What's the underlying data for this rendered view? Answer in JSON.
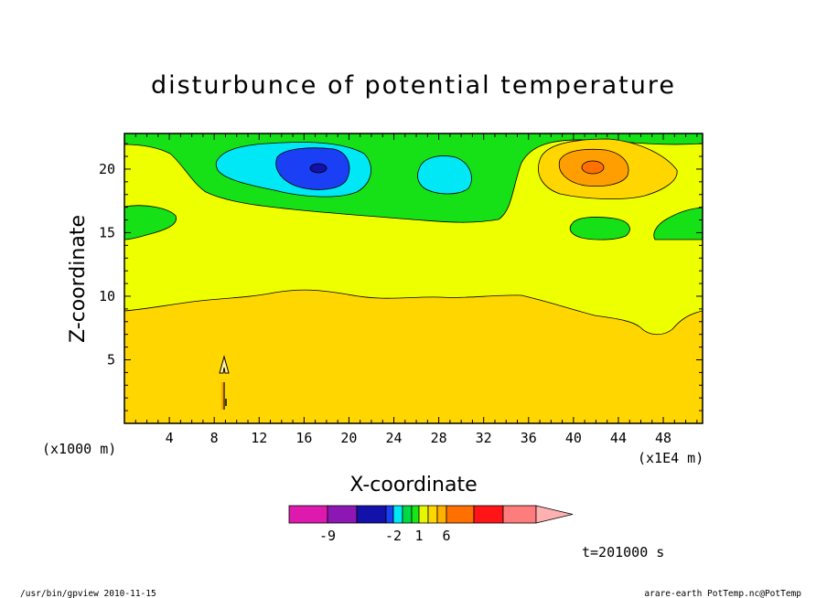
{
  "chart_data": {
    "type": "contour",
    "title": "disturbunce of potential temperature",
    "xlabel": "X-coordinate",
    "ylabel": "Z-coordinate",
    "x_unit_left": "(x1000 m)",
    "x_unit_right": "(x1E4 m)",
    "xlim": [
      0,
      51.5
    ],
    "ylim": [
      0,
      22.8
    ],
    "x_ticks": [
      4,
      8,
      12,
      16,
      20,
      24,
      28,
      32,
      36,
      40,
      44,
      48
    ],
    "y_ticks": [
      5,
      10,
      15,
      20
    ],
    "colorbar": {
      "tick_labels": [
        {
          "label": "-9",
          "index": 1
        },
        {
          "label": "-2",
          "index": 4
        },
        {
          "label": "1",
          "index": 7
        },
        {
          "label": "6",
          "index": 10
        }
      ],
      "colors": [
        "#dd1aad",
        "#8d17b3",
        "#1212aa",
        "#1a3ff5",
        "#00e8f5",
        "#00d846",
        "#18e618",
        "#e6f500",
        "#ffd600",
        "#ffb000",
        "#ff7000",
        "#ff1418",
        "#ff7c7c",
        "#ffb0b0"
      ]
    },
    "features": [
      {
        "name": "low-center",
        "x": 17.2,
        "z": 20.2,
        "levels": [
          "#00e8f5",
          "#1a3ff5",
          "#1212aa"
        ]
      },
      {
        "name": "low-small",
        "x": 28.2,
        "z": 19.8,
        "levels": [
          "#00e8f5"
        ]
      },
      {
        "name": "high-center",
        "x": 41.5,
        "z": 20.2,
        "levels": [
          "#ffd600",
          "#ff9a00",
          "#ff7000"
        ]
      }
    ],
    "timestamp": "t=201000 s"
  },
  "footer": {
    "left": "/usr/bin/gpview   2010-11-15",
    "right": "arare-earth_PotTemp.nc@PotTemp"
  },
  "colors": {
    "frame": "#000000",
    "background": "#ffffff"
  }
}
